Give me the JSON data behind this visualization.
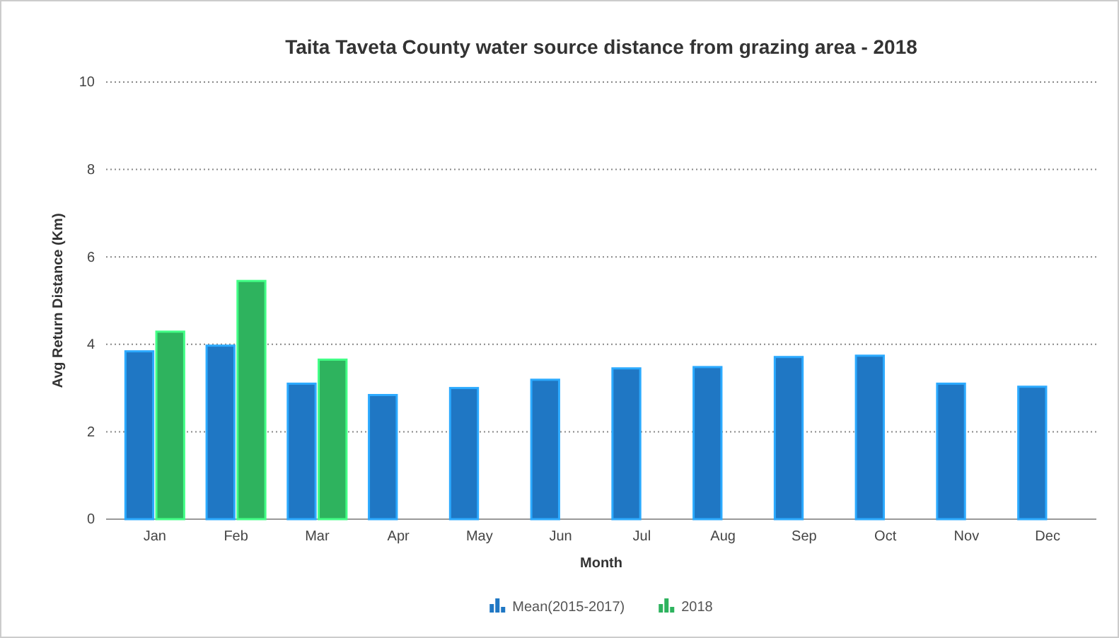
{
  "chart_data": {
    "type": "bar",
    "title": "Taita Taveta County water source distance from grazing area - 2018",
    "xlabel": "Month",
    "ylabel": "Avg Return Distance (Km)",
    "categories": [
      "Jan",
      "Feb",
      "Mar",
      "Apr",
      "May",
      "Jun",
      "Jul",
      "Aug",
      "Sep",
      "Oct",
      "Nov",
      "Dec"
    ],
    "series": [
      {
        "name": "Mean(2015-2017)",
        "color": "#1f77c4",
        "values": [
          3.84,
          3.97,
          3.1,
          2.84,
          3.0,
          3.19,
          3.45,
          3.48,
          3.71,
          3.74,
          3.1,
          3.03
        ]
      },
      {
        "name": "2018",
        "color": "#2eb35e",
        "values": [
          4.29,
          5.45,
          3.65,
          null,
          null,
          null,
          null,
          null,
          null,
          null,
          null,
          null
        ]
      }
    ],
    "ylim": [
      0,
      10
    ],
    "yticks": [
      0,
      2,
      4,
      6,
      8,
      10
    ],
    "grid": "y",
    "legend": "bottom"
  }
}
